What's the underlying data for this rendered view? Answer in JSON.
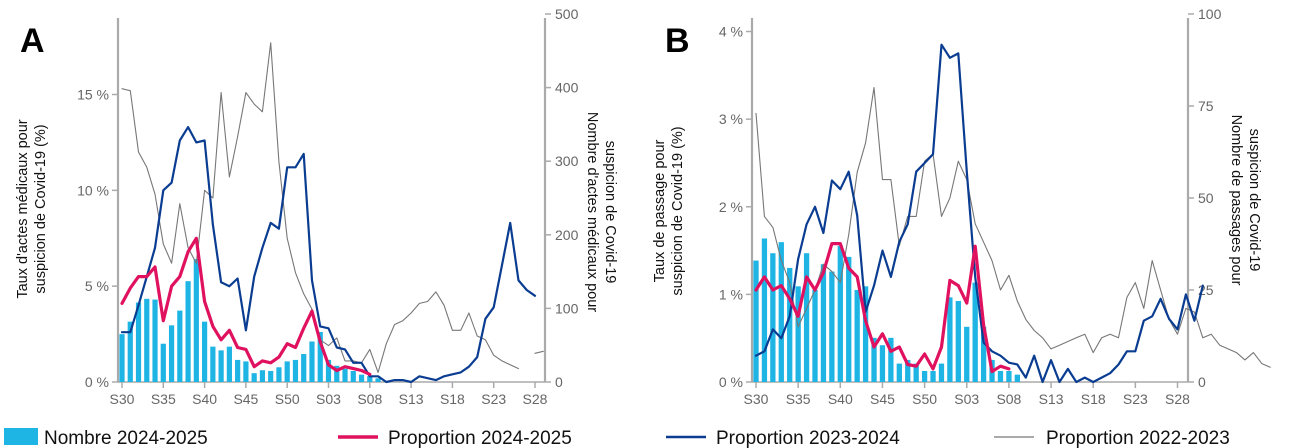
{
  "legend": {
    "nombre": "Nombre 2024-2025",
    "p2425": "Proportion 2024-2025",
    "p2324": "Proportion 2023-2024",
    "p2223": "Proportion 2022-2023"
  },
  "colors": {
    "bars": "#1eb4e4",
    "p2425": "#e0115f",
    "p2324": "#0a3d91",
    "p2223": "#777777",
    "axis": "#aaaaaa"
  },
  "chart_data": [
    {
      "panel": "A",
      "type": "bar+line",
      "ylabel_left": "Taux d'actes médicaux pour suspicion de Covid-19 (%)",
      "ylabel_right": "Nombre d'actes médicaux pour suspicion de Covid-19",
      "x_ticks": [
        "S30",
        "S35",
        "S40",
        "S45",
        "S50",
        "S03",
        "S08",
        "S13",
        "S18",
        "S23",
        "S28"
      ],
      "left_ticks": [
        "0 %",
        "5 %",
        "10 %",
        "15 %"
      ],
      "left_tick_values": [
        0,
        5,
        10,
        15
      ],
      "right_ticks": [
        "0",
        "100",
        "200",
        "300",
        "400",
        "500"
      ],
      "right_tick_values": [
        0,
        100,
        200,
        300,
        400,
        500
      ],
      "ylim_left": [
        0,
        19.2
      ],
      "ylim_right": [
        0,
        500
      ],
      "bars_nombre_2024_2025": [
        65,
        82,
        108,
        113,
        112,
        52,
        77,
        97,
        137,
        167,
        82,
        48,
        43,
        48,
        30,
        28,
        12,
        16,
        15,
        20,
        28,
        30,
        38,
        55,
        68,
        30,
        22,
        18,
        15,
        10,
        8,
        5
      ],
      "proportion_2024_2025": [
        4.1,
        4.9,
        5.5,
        5.5,
        6.0,
        3.2,
        5.0,
        5.5,
        6.8,
        7.5,
        4.2,
        2.9,
        2.2,
        2.7,
        1.8,
        1.7,
        0.8,
        1.1,
        1.0,
        1.3,
        2.0,
        1.8,
        2.8,
        3.7,
        2.1,
        0.9,
        0.6,
        0.8,
        0.7,
        0.6,
        0.4,
        null
      ],
      "proportion_2023_2024": [
        2.6,
        2.6,
        4.0,
        5.5,
        7.0,
        10.0,
        10.4,
        12.6,
        13.3,
        12.5,
        12.6,
        8.2,
        5.2,
        5.0,
        5.4,
        2.7,
        5.5,
        7.0,
        8.3,
        8.0,
        11.2,
        11.2,
        11.9,
        5.3,
        2.9,
        2.8,
        1.8,
        1.7,
        1.0,
        1.0,
        0.3,
        0.3,
        0.0,
        0.1,
        0.1,
        0.0,
        0.3,
        0.2,
        0.1,
        0.3,
        0.4,
        0.5,
        0.8,
        1.3,
        3.3,
        3.9,
        6.1,
        8.3,
        5.3,
        4.8,
        4.5
      ],
      "proportion_2022_2023": [
        15.3,
        15.2,
        12.0,
        11.2,
        9.8,
        7.2,
        6.2,
        9.3,
        7.0,
        6.2,
        10.0,
        9.6,
        15.1,
        10.7,
        12.8,
        15.1,
        14.5,
        14.1,
        17.7,
        11.5,
        7.5,
        5.7,
        4.6,
        3.8,
        2.2,
        1.9,
        2.3,
        1.1,
        1.1,
        1.0,
        1.7,
        0.5,
        2.0,
        3.0,
        3.2,
        3.6,
        4.1,
        4.2,
        4.7,
        4.0,
        2.7,
        2.7,
        3.6,
        2.4,
        2.2,
        1.4,
        1.1,
        0.9,
        0.7,
        null,
        1.5,
        1.6
      ]
    },
    {
      "panel": "B",
      "type": "bar+line",
      "ylabel_left": "Taux de passage pour suspicion de Covid-19 (%)",
      "ylabel_right": "Nombre de passages pour suspicion de Covid-19",
      "x_ticks": [
        "S30",
        "S35",
        "S40",
        "S45",
        "S50",
        "S03",
        "S08",
        "S13",
        "S18",
        "S23",
        "S28"
      ],
      "left_ticks": [
        "0 %",
        "1 %",
        "2 %",
        "3 %",
        "4 %"
      ],
      "left_tick_values": [
        0,
        1,
        2,
        3,
        4
      ],
      "right_ticks": [
        "0",
        "25",
        "50",
        "75",
        "100"
      ],
      "right_tick_values": [
        0,
        25,
        50,
        75,
        100
      ],
      "ylim_left": [
        0,
        4.2
      ],
      "ylim_right": [
        0,
        100
      ],
      "bars_nombre_2024_2025": [
        33,
        39,
        35,
        38,
        31,
        26,
        35,
        25,
        32,
        30,
        37,
        34,
        25,
        26,
        12,
        10,
        12,
        5,
        6,
        5,
        3,
        3,
        5,
        23,
        22,
        15,
        27,
        15,
        6,
        3,
        3,
        2
      ],
      "proportion_2024_2025": [
        1.05,
        1.2,
        1.05,
        1.1,
        0.95,
        0.75,
        1.2,
        1.05,
        1.25,
        1.58,
        1.58,
        1.3,
        1.2,
        0.7,
        0.4,
        0.55,
        0.35,
        0.4,
        0.2,
        0.18,
        0.32,
        0.15,
        0.4,
        1.16,
        1.1,
        0.9,
        1.55,
        0.65,
        0.12,
        0.18,
        0.15,
        null
      ],
      "proportion_2023_2024": [
        0.3,
        0.35,
        0.6,
        0.5,
        0.75,
        1.4,
        1.8,
        2.0,
        1.7,
        2.3,
        2.2,
        2.4,
        1.9,
        0.8,
        1.1,
        1.5,
        1.2,
        1.6,
        1.8,
        2.4,
        2.5,
        2.6,
        3.85,
        3.7,
        3.75,
        2.4,
        1.2,
        0.45,
        0.35,
        0.3,
        0.22,
        0.2,
        0.05,
        0.3,
        0.0,
        0.25,
        0.0,
        0.15,
        0.0,
        0.05,
        0.0,
        0.05,
        0.1,
        0.2,
        0.35,
        0.35,
        0.7,
        0.75,
        0.95,
        0.72,
        0.6,
        1.0,
        0.7,
        1.1
      ],
      "proportion_2022_2023": [
        73,
        45,
        42,
        33,
        27,
        15,
        20,
        25,
        32,
        30,
        27,
        40,
        57,
        65,
        80,
        55,
        55,
        37,
        45,
        45,
        60,
        62,
        45,
        50,
        60,
        55,
        43,
        38,
        33,
        25,
        29,
        22,
        17,
        14,
        12,
        9,
        10,
        11,
        12,
        13,
        8,
        12,
        13,
        12,
        23,
        27,
        20,
        33,
        25,
        17,
        13,
        20,
        19,
        12,
        13,
        10,
        9,
        8,
        6,
        8,
        5,
        4
      ]
    }
  ]
}
